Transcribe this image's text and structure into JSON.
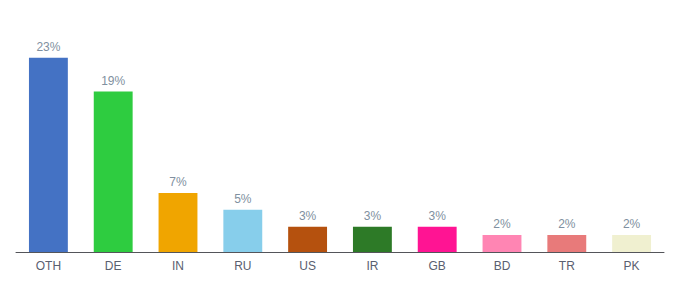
{
  "chart_data": {
    "type": "bar",
    "categories": [
      "OTH",
      "DE",
      "IN",
      "RU",
      "US",
      "IR",
      "GB",
      "BD",
      "TR",
      "PK"
    ],
    "values": [
      23,
      19,
      7,
      5,
      3,
      3,
      3,
      2,
      2,
      2
    ],
    "value_labels": [
      "23%",
      "19%",
      "7%",
      "5%",
      "3%",
      "3%",
      "3%",
      "2%",
      "2%",
      "2%"
    ],
    "colors": [
      "#4472c4",
      "#2ecc40",
      "#f0a500",
      "#87ceeb",
      "#b5510e",
      "#2d7a27",
      "#ff1493",
      "#ff85b3",
      "#e87a7a",
      "#f0f0d0"
    ],
    "ylim": [
      0,
      27
    ],
    "grid": false,
    "tick_labels": "x",
    "data_labels": true
  }
}
